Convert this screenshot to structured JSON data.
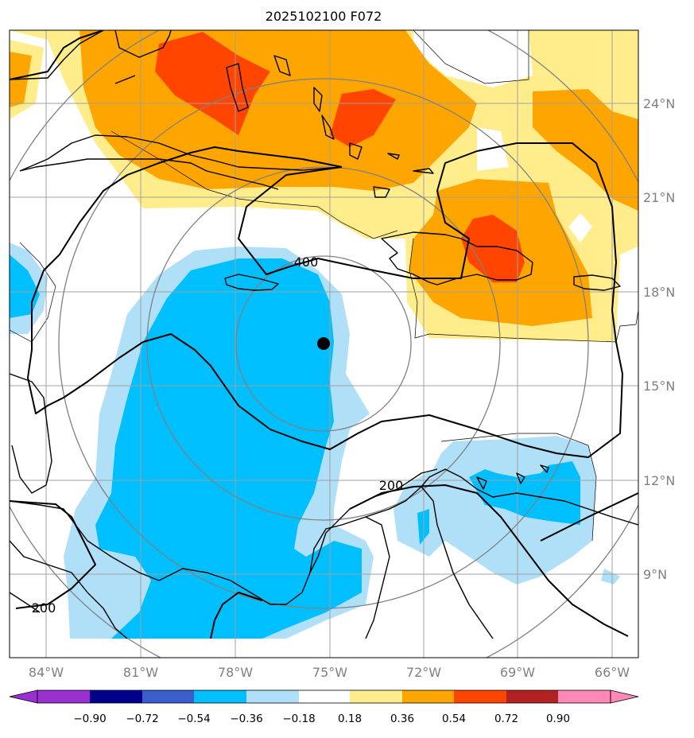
{
  "title": "2025102100 F072",
  "lat_labels": [
    "24°N",
    "21°N",
    "18°N",
    "15°N",
    "12°N",
    "9°N"
  ],
  "lon_labels": [
    "84°W",
    "81°W",
    "78°W",
    "75°W",
    "72°W",
    "69°W",
    "66°W"
  ],
  "contour_labels": [
    "400",
    "200",
    "200"
  ],
  "colorbar": {
    "ticks": [
      "−0.90",
      "−0.72",
      "−0.54",
      "−0.36",
      "−0.18",
      "0.18",
      "0.36",
      "0.54",
      "0.72",
      "0.90"
    ],
    "colors": [
      "#9b30d0",
      "#00008b",
      "#3a5fcd",
      "#00bfff",
      "#b0e0f8",
      "#ffffff",
      "#ffec8b",
      "#ffa500",
      "#ff4500",
      "#b22222",
      "#ff88b8"
    ]
  },
  "colors": {
    "light_yellow": "#ffec8b",
    "orange": "#ffa500",
    "red_orange": "#ff4500",
    "deep_sky_blue": "#00bfff",
    "light_blue": "#b0e0f8",
    "grid": "#a0a0a0",
    "range_rings": "#808080"
  },
  "marker": {
    "name": "storm-center",
    "lat": 16.4,
    "lon": -75.1
  }
}
